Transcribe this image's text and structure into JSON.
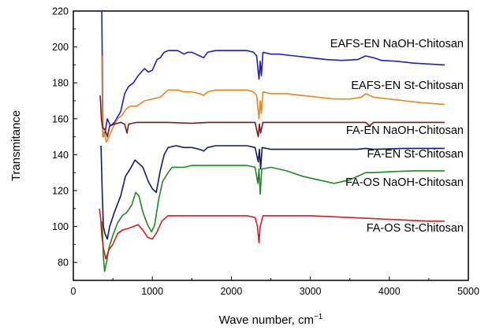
{
  "chart_data": {
    "type": "line",
    "xlabel": "Wave number, cm",
    "xlabel_sup": "−1",
    "ylabel": "Transmitance",
    "xlim": [
      0,
      5000
    ],
    "ylim": [
      70,
      220
    ],
    "xticks": [
      0,
      1000,
      2000,
      3000,
      4000,
      5000
    ],
    "yticks": [
      80,
      100,
      120,
      140,
      160,
      180,
      200,
      220
    ],
    "grid": false,
    "legend": "inline labels at right of each curve",
    "series": [
      {
        "name": "EAFS-EN NaOH-Chitosan",
        "color": "#1f1fc0",
        "points": [
          [
            360,
            220
          ],
          [
            375,
            150
          ],
          [
            400,
            152
          ],
          [
            430,
            160
          ],
          [
            470,
            156
          ],
          [
            520,
            158
          ],
          [
            600,
            164
          ],
          [
            650,
            174
          ],
          [
            700,
            178
          ],
          [
            760,
            180
          ],
          [
            820,
            184
          ],
          [
            900,
            188
          ],
          [
            950,
            186
          ],
          [
            1000,
            187
          ],
          [
            1060,
            193
          ],
          [
            1100,
            194
          ],
          [
            1150,
            197
          ],
          [
            1200,
            198
          ],
          [
            1260,
            198
          ],
          [
            1320,
            198
          ],
          [
            1400,
            196
          ],
          [
            1450,
            197
          ],
          [
            1500,
            197
          ],
          [
            1550,
            196
          ],
          [
            1600,
            195
          ],
          [
            1650,
            194
          ],
          [
            1700,
            197
          ],
          [
            1800,
            198
          ],
          [
            1900,
            198
          ],
          [
            2000,
            198
          ],
          [
            2100,
            198
          ],
          [
            2200,
            198
          ],
          [
            2280,
            197
          ],
          [
            2320,
            195
          ],
          [
            2350,
            182
          ],
          [
            2365,
            192
          ],
          [
            2380,
            184
          ],
          [
            2400,
            197
          ],
          [
            2500,
            196
          ],
          [
            2600,
            196
          ],
          [
            2800,
            195
          ],
          [
            3000,
            194
          ],
          [
            3200,
            193
          ],
          [
            3400,
            192.5
          ],
          [
            3600,
            193
          ],
          [
            3700,
            195
          ],
          [
            3800,
            194
          ],
          [
            3900,
            192.5
          ],
          [
            4100,
            192
          ],
          [
            4300,
            191
          ],
          [
            4500,
            190.5
          ],
          [
            4700,
            190
          ]
        ]
      },
      {
        "name": "EAFS-EN St-Chitosan",
        "color": "#e8871e",
        "points": [
          [
            360,
            195
          ],
          [
            372,
            150
          ],
          [
            390,
            152
          ],
          [
            420,
            147
          ],
          [
            450,
            150
          ],
          [
            500,
            155
          ],
          [
            560,
            160
          ],
          [
            620,
            162
          ],
          [
            660,
            165
          ],
          [
            720,
            167
          ],
          [
            800,
            167
          ],
          [
            900,
            170
          ],
          [
            1000,
            171
          ],
          [
            1100,
            172
          ],
          [
            1150,
            174
          ],
          [
            1200,
            176
          ],
          [
            1260,
            176
          ],
          [
            1320,
            176
          ],
          [
            1400,
            175
          ],
          [
            1500,
            175
          ],
          [
            1600,
            174
          ],
          [
            1650,
            173
          ],
          [
            1700,
            175
          ],
          [
            1800,
            176
          ],
          [
            1900,
            176
          ],
          [
            2000,
            176
          ],
          [
            2100,
            176
          ],
          [
            2200,
            176
          ],
          [
            2280,
            175
          ],
          [
            2320,
            173
          ],
          [
            2350,
            160
          ],
          [
            2365,
            170
          ],
          [
            2380,
            163
          ],
          [
            2400,
            175
          ],
          [
            2500,
            174
          ],
          [
            2700,
            174
          ],
          [
            2900,
            173
          ],
          [
            3100,
            172
          ],
          [
            3300,
            171
          ],
          [
            3500,
            171
          ],
          [
            3650,
            172
          ],
          [
            3700,
            174
          ],
          [
            3800,
            172
          ],
          [
            4000,
            171
          ],
          [
            4200,
            170
          ],
          [
            4400,
            169
          ],
          [
            4700,
            168
          ]
        ]
      },
      {
        "name": "FA-EN NaOH-Chitosan",
        "color": "#7a1a1a",
        "points": [
          [
            340,
            173
          ],
          [
            355,
            160
          ],
          [
            370,
            155
          ],
          [
            400,
            154
          ],
          [
            430,
            150
          ],
          [
            460,
            156
          ],
          [
            520,
            157
          ],
          [
            600,
            158
          ],
          [
            650,
            157
          ],
          [
            680,
            152
          ],
          [
            700,
            157
          ],
          [
            800,
            158
          ],
          [
            1000,
            158
          ],
          [
            1200,
            158
          ],
          [
            1500,
            157.5
          ],
          [
            1700,
            158
          ],
          [
            2000,
            158
          ],
          [
            2200,
            158
          ],
          [
            2300,
            158
          ],
          [
            2340,
            150
          ],
          [
            2355,
            157
          ],
          [
            2370,
            152
          ],
          [
            2400,
            158
          ],
          [
            2600,
            158
          ],
          [
            3000,
            158
          ],
          [
            3400,
            158
          ],
          [
            3700,
            158
          ],
          [
            3750,
            156
          ],
          [
            3800,
            158
          ],
          [
            4200,
            158
          ],
          [
            4700,
            158
          ]
        ]
      },
      {
        "name": "FA-EN St-Chitosan",
        "color": "#141a66",
        "points": [
          [
            350,
            145
          ],
          [
            365,
            120
          ],
          [
            380,
            100
          ],
          [
            400,
            96
          ],
          [
            430,
            93
          ],
          [
            460,
            100
          ],
          [
            520,
            108
          ],
          [
            600,
            117
          ],
          [
            660,
            128
          ],
          [
            720,
            132
          ],
          [
            780,
            137
          ],
          [
            830,
            135
          ],
          [
            880,
            133
          ],
          [
            950,
            125
          ],
          [
            1000,
            121
          ],
          [
            1050,
            119
          ],
          [
            1100,
            131
          ],
          [
            1150,
            140
          ],
          [
            1200,
            144
          ],
          [
            1300,
            145
          ],
          [
            1400,
            144
          ],
          [
            1500,
            144
          ],
          [
            1600,
            143
          ],
          [
            1650,
            142
          ],
          [
            1700,
            144
          ],
          [
            1800,
            145
          ],
          [
            2000,
            145
          ],
          [
            2200,
            145
          ],
          [
            2300,
            144
          ],
          [
            2340,
            136
          ],
          [
            2355,
            143
          ],
          [
            2370,
            132
          ],
          [
            2390,
            144
          ],
          [
            2500,
            143
          ],
          [
            2700,
            143
          ],
          [
            3000,
            143
          ],
          [
            3300,
            143
          ],
          [
            3600,
            143
          ],
          [
            3700,
            143.5
          ],
          [
            3800,
            143
          ],
          [
            4200,
            143.5
          ],
          [
            4700,
            143.5
          ]
        ]
      },
      {
        "name": "FA-OS NaOH-Chitosan",
        "color": "#1f8a1f",
        "points": [
          [
            365,
            103
          ],
          [
            378,
            85
          ],
          [
            395,
            75
          ],
          [
            420,
            80
          ],
          [
            450,
            88
          ],
          [
            500,
            95
          ],
          [
            560,
            102
          ],
          [
            620,
            106
          ],
          [
            680,
            108
          ],
          [
            740,
            112
          ],
          [
            790,
            119
          ],
          [
            830,
            117
          ],
          [
            880,
            108
          ],
          [
            940,
            101
          ],
          [
            990,
            97
          ],
          [
            1030,
            101
          ],
          [
            1080,
            115
          ],
          [
            1130,
            125
          ],
          [
            1200,
            130
          ],
          [
            1250,
            133
          ],
          [
            1300,
            133
          ],
          [
            1400,
            133
          ],
          [
            1500,
            134
          ],
          [
            1600,
            134
          ],
          [
            1700,
            134
          ],
          [
            2000,
            134
          ],
          [
            2200,
            134
          ],
          [
            2300,
            133
          ],
          [
            2335,
            124
          ],
          [
            2350,
            132
          ],
          [
            2365,
            118
          ],
          [
            2385,
            132
          ],
          [
            2500,
            133
          ],
          [
            2700,
            131
          ],
          [
            2900,
            128
          ],
          [
            3100,
            126
          ],
          [
            3300,
            124
          ],
          [
            3500,
            126
          ],
          [
            3650,
            129
          ],
          [
            3700,
            130
          ],
          [
            3800,
            130
          ],
          [
            4000,
            130.5
          ],
          [
            4300,
            131
          ],
          [
            4700,
            131
          ]
        ]
      },
      {
        "name": "FA-OS St-Chitosan",
        "color": "#d01f1f",
        "points": [
          [
            330,
            110
          ],
          [
            345,
            105
          ],
          [
            360,
            95
          ],
          [
            380,
            88
          ],
          [
            410,
            82
          ],
          [
            450,
            87
          ],
          [
            500,
            90
          ],
          [
            560,
            96
          ],
          [
            620,
            98
          ],
          [
            700,
            99
          ],
          [
            760,
            100
          ],
          [
            820,
            101
          ],
          [
            880,
            98
          ],
          [
            940,
            94
          ],
          [
            1000,
            93
          ],
          [
            1060,
            97
          ],
          [
            1120,
            103
          ],
          [
            1200,
            106
          ],
          [
            1300,
            106
          ],
          [
            1400,
            106
          ],
          [
            1600,
            106
          ],
          [
            1800,
            106
          ],
          [
            2000,
            106
          ],
          [
            2200,
            106
          ],
          [
            2300,
            105
          ],
          [
            2330,
            100
          ],
          [
            2350,
            91
          ],
          [
            2365,
            100
          ],
          [
            2400,
            106
          ],
          [
            2600,
            106
          ],
          [
            3000,
            106
          ],
          [
            3500,
            105
          ],
          [
            4000,
            104
          ],
          [
            4500,
            103
          ],
          [
            4700,
            103
          ]
        ]
      }
    ]
  }
}
